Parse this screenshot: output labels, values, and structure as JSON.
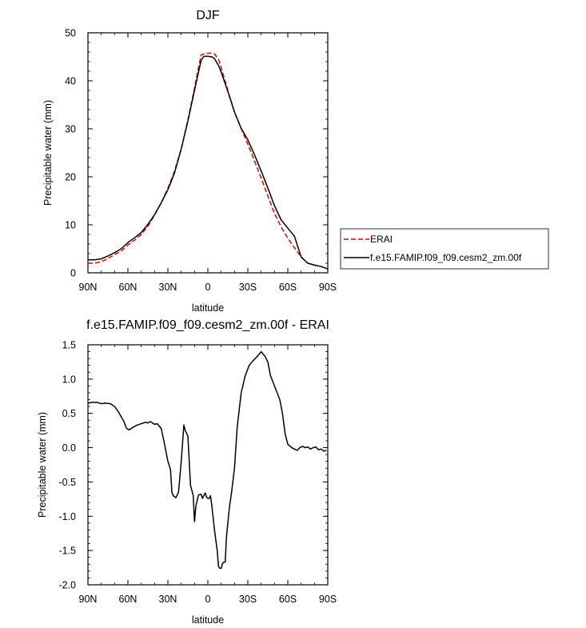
{
  "chart_data": [
    {
      "type": "line",
      "title": "DJF",
      "xlabel": "latitude",
      "ylabel": "Precipitable water (mm)",
      "xlim": [
        90,
        -90
      ],
      "ylim": [
        0,
        50
      ],
      "xticks": [
        90,
        60,
        30,
        0,
        -30,
        -60,
        -90
      ],
      "xtick_labels": [
        "90N",
        "60N",
        "30N",
        "0",
        "30S",
        "60S",
        "90S"
      ],
      "yticks": [
        0,
        10,
        20,
        30,
        40,
        50
      ],
      "ytick_labels": [
        "0",
        "10",
        "20",
        "30",
        "40",
        "50"
      ],
      "legend": {
        "placement": "right",
        "entries": [
          "ERAI",
          "f.e15.FAMIP.f09_f09.cesm2_zm.00f"
        ]
      },
      "series": [
        {
          "name": "ERAI",
          "color": "#dd0000",
          "dash": "dashed",
          "x": [
            90,
            85,
            80,
            75,
            70,
            65,
            60,
            55,
            50,
            45,
            40,
            35,
            30,
            25,
            20,
            15,
            10,
            7,
            5,
            3,
            0,
            -3,
            -5,
            -8,
            -10,
            -15,
            -20,
            -25,
            -30,
            -35,
            -40,
            -45,
            -50,
            -55,
            -60,
            -65,
            -70,
            -75,
            -80,
            -85,
            -90
          ],
          "y": [
            2.0,
            2.0,
            2.3,
            3.0,
            3.8,
            4.5,
            5.8,
            6.8,
            8.0,
            9.7,
            12.0,
            14.6,
            17.6,
            21.2,
            25.8,
            31.8,
            38.5,
            42.8,
            45.4,
            45.6,
            45.7,
            45.8,
            45.6,
            44.5,
            42.7,
            38.0,
            33.5,
            30.0,
            26.8,
            23.3,
            19.7,
            16.0,
            12.4,
            9.5,
            7.2,
            5.2,
            3.3,
            2.0,
            1.6,
            1.3,
            0.8
          ]
        },
        {
          "name": "f.e15.FAMIP.f09_f09.cesm2_zm.00f",
          "color": "#000000",
          "dash": "solid",
          "x": [
            90,
            85,
            80,
            75,
            70,
            65,
            60,
            55,
            50,
            45,
            40,
            35,
            30,
            25,
            20,
            15,
            10,
            7,
            5,
            3,
            0,
            -3,
            -5,
            -8,
            -10,
            -15,
            -20,
            -25,
            -30,
            -35,
            -40,
            -45,
            -50,
            -55,
            -60,
            -65,
            -70,
            -75,
            -80,
            -85,
            -90
          ],
          "y": [
            2.7,
            2.7,
            2.9,
            3.5,
            4.2,
            5.0,
            6.3,
            7.3,
            8.4,
            10.1,
            12.1,
            14.6,
            17.3,
            20.8,
            25.8,
            31.6,
            38.0,
            41.8,
            44.3,
            45.1,
            45.1,
            45.0,
            44.6,
            43.2,
            41.8,
            37.8,
            33.5,
            30.1,
            27.7,
            24.6,
            21.2,
            17.7,
            14.0,
            11.0,
            9.3,
            7.6,
            3.3,
            2.0,
            1.6,
            1.3,
            0.8
          ]
        }
      ]
    },
    {
      "type": "line",
      "title": "f.e15.FAMIP.f09_f09.cesm2_zm.00f - ERAI",
      "xlabel": "latitude",
      "ylabel": "Precipitable water (mm)",
      "xlim": [
        90,
        -90
      ],
      "ylim": [
        -2.0,
        1.5
      ],
      "xticks": [
        90,
        60,
        30,
        0,
        -30,
        -60,
        -90
      ],
      "xtick_labels": [
        "90N",
        "60N",
        "30N",
        "0",
        "30S",
        "60S",
        "90S"
      ],
      "yticks": [
        -2.0,
        -1.5,
        -1.0,
        -0.5,
        0.0,
        0.5,
        1.0,
        1.5
      ],
      "ytick_labels": [
        "-2.0",
        "-1.5",
        "-1.0",
        "-0.5",
        "0.0",
        "0.5",
        "1.0",
        "1.5"
      ],
      "series": [
        {
          "color": "#000000",
          "dash": "solid",
          "x": [
            90,
            87,
            83,
            80,
            77,
            73,
            70,
            67,
            63,
            61,
            59,
            56,
            53,
            50,
            47,
            45,
            43,
            40,
            38,
            35,
            32,
            30,
            28,
            27,
            26,
            24,
            22,
            20,
            18,
            17,
            15,
            13,
            11,
            10,
            9,
            7,
            5,
            4,
            2,
            1,
            0,
            -1,
            -2,
            -3,
            -5,
            -7,
            -8,
            -9,
            -10,
            -11,
            -12,
            -13,
            -14,
            -16,
            -18,
            -20,
            -22,
            -25,
            -28,
            -31,
            -34,
            -37,
            -40,
            -43,
            -45,
            -46,
            -47,
            -48,
            -49,
            -50,
            -52,
            -54,
            -56,
            -58,
            -60,
            -63,
            -65,
            -67,
            -69,
            -71,
            -73,
            -75,
            -77,
            -79,
            -81,
            -83,
            -85,
            -87,
            -89
          ],
          "y": [
            0.65,
            0.66,
            0.66,
            0.64,
            0.65,
            0.64,
            0.6,
            0.52,
            0.38,
            0.28,
            0.26,
            0.3,
            0.33,
            0.35,
            0.37,
            0.36,
            0.38,
            0.34,
            0.35,
            0.28,
            0.0,
            -0.2,
            -0.32,
            -0.65,
            -0.7,
            -0.73,
            -0.65,
            -0.2,
            0.33,
            0.25,
            0.17,
            -0.55,
            -0.7,
            -1.08,
            -0.85,
            -0.69,
            -0.68,
            -0.74,
            -0.66,
            -0.72,
            -0.74,
            -0.74,
            -0.7,
            -0.85,
            -1.2,
            -1.5,
            -1.73,
            -1.76,
            -1.76,
            -1.69,
            -1.67,
            -1.67,
            -1.3,
            -0.9,
            -0.62,
            -0.3,
            0.3,
            0.8,
            1.05,
            1.2,
            1.27,
            1.33,
            1.4,
            1.33,
            1.25,
            1.15,
            1.05,
            1.0,
            0.95,
            0.9,
            0.8,
            0.7,
            0.5,
            0.2,
            0.05,
            0.0,
            -0.02,
            -0.04,
            0.0,
            0.02,
            0.0,
            0.01,
            -0.02,
            0.0,
            0.01,
            -0.03,
            -0.02,
            -0.05,
            -0.04
          ]
        }
      ]
    }
  ]
}
